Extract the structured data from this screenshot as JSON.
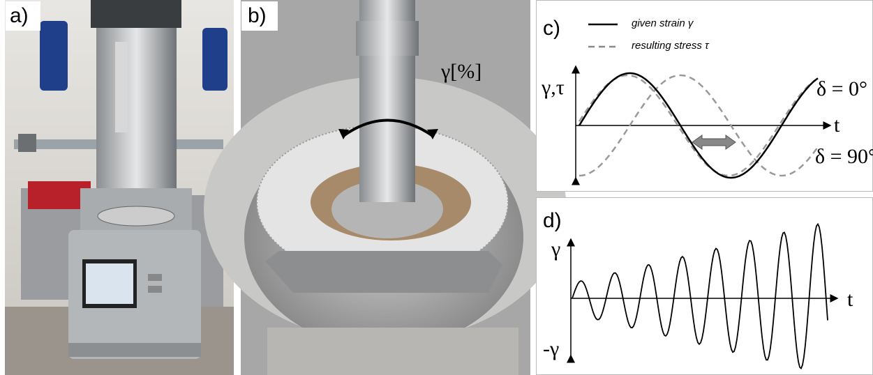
{
  "panel_a": {
    "label": "a)"
  },
  "panel_b": {
    "label": "b)",
    "annotation": "γ[%]"
  },
  "panel_c": {
    "label": "c)",
    "legend": [
      "given strain γ",
      "resulting stress τ"
    ],
    "y_axis_label": "γ,τ",
    "x_axis_label": "t",
    "phase_labels": [
      "δ = 0°",
      "δ = 90°"
    ]
  },
  "panel_d": {
    "label": "d)",
    "y_top_label": "γ",
    "y_bottom_label": "-γ",
    "x_axis_label": "t"
  }
}
